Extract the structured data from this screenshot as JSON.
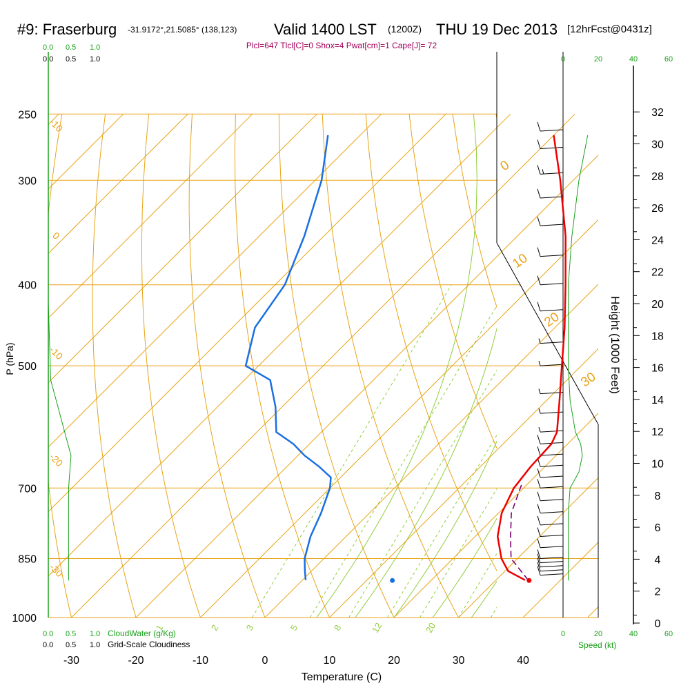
{
  "header": {
    "station": "#9: Fraserburg",
    "coords": "-31.9172°,21.5085° (138,123)",
    "valid": "Valid 1400 LST",
    "zulu": "(1200Z)",
    "date": "THU 19 Dec 2013",
    "forecast": "[12hrFcst@0431z]"
  },
  "indices": "Plcl=647 Tlcl[C]=0 Shox=4 Pwat[cm]=1 Cape[J]= 72",
  "colors": {
    "isotherm": "#e8a317",
    "temperature": "#ee0000",
    "dewpoint": "#1a6fe0",
    "parcel": "#7a0070",
    "mixing_ratio": "#8fce3a",
    "green_label": "#1aa01a",
    "index_text": "#a0005a"
  },
  "top_scale_cloudwater_labels": [
    "0.0",
    "0.5",
    "1.0"
  ],
  "top_scale_cloudiness_labels": [
    "0.0",
    "0.5",
    "1.0"
  ],
  "bottom_scale_cloudwater_labels": [
    "0.0",
    "0.5",
    "1.0"
  ],
  "bottom_scale_cloudwater_title": "CloudWater (g/Kg)",
  "bottom_scale_cloudiness_labels": [
    "0.0",
    "0.5",
    "1.0"
  ],
  "bottom_scale_cloudiness_title": "Grid-Scale Cloudiness",
  "speed_axis": {
    "labels": [
      "0",
      "20",
      "40",
      "60"
    ],
    "title": "Speed (kt)"
  },
  "height_axis": {
    "title": "Height (1000 Feet)",
    "ticks": [
      0,
      2,
      4,
      6,
      8,
      10,
      12,
      14,
      16,
      18,
      20,
      22,
      24,
      26,
      28,
      30,
      32
    ]
  },
  "chart_data": {
    "type": "line",
    "title": "Skew-T log-P sounding",
    "xlabel": "Temperature (C)",
    "ylabel": "P (hPa)",
    "x_ticks": [
      -30,
      -20,
      -10,
      0,
      10,
      20,
      30,
      40
    ],
    "y_ticks": [
      250,
      300,
      400,
      500,
      700,
      850,
      1000
    ],
    "pressure_range_hpa": [
      1000,
      250
    ],
    "skew_isotherm_labels": [
      "-10",
      "0",
      "-10",
      "-20",
      "-30"
    ],
    "theta_labels": [
      "0",
      "10",
      "20",
      "30"
    ],
    "mixing_ratio_labels": [
      "1",
      "2",
      "3",
      "5",
      "8",
      "12",
      "20"
    ],
    "series": [
      {
        "name": "temperature",
        "points": [
          [
            902,
            34.5
          ],
          [
            880,
            30.5
          ],
          [
            850,
            27.5
          ],
          [
            800,
            23.5
          ],
          [
            750,
            20.5
          ],
          [
            700,
            18.5
          ],
          [
            660,
            17.8
          ],
          [
            620,
            17.5
          ],
          [
            600,
            16.5
          ],
          [
            550,
            12.0
          ],
          [
            500,
            7.0
          ],
          [
            450,
            1.5
          ],
          [
            400,
            -5.0
          ],
          [
            350,
            -12.5
          ],
          [
            300,
            -22.0
          ],
          [
            265,
            -30.0
          ]
        ]
      },
      {
        "name": "dewpoint",
        "points": [
          [
            902,
            0.5
          ],
          [
            880,
            -1.0
          ],
          [
            850,
            -3.0
          ],
          [
            800,
            -5.5
          ],
          [
            750,
            -7.5
          ],
          [
            700,
            -10.0
          ],
          [
            680,
            -11.5
          ],
          [
            660,
            -15.0
          ],
          [
            640,
            -19.0
          ],
          [
            620,
            -22.5
          ],
          [
            600,
            -27.0
          ],
          [
            560,
            -31.0
          ],
          [
            520,
            -36.0
          ],
          [
            500,
            -42.0
          ],
          [
            450,
            -46.5
          ],
          [
            400,
            -48.5
          ],
          [
            350,
            -53.0
          ],
          [
            300,
            -59.0
          ],
          [
            265,
            -65.0
          ]
        ]
      },
      {
        "name": "parcel",
        "points": [
          [
            902,
            35.0
          ],
          [
            850,
            29.0
          ],
          [
            800,
            25.5
          ],
          [
            750,
            22.0
          ],
          [
            700,
            19.5
          ],
          [
            690,
            19.0
          ]
        ]
      }
    ],
    "surface_markers": [
      {
        "name": "surface temperature",
        "pressure": 903,
        "value": 35.2
      },
      {
        "name": "surface dewpoint",
        "pressure": 903,
        "value": 14.0
      }
    ],
    "wind_speed_profile_kt": [
      [
        903,
        3
      ],
      [
        880,
        3
      ],
      [
        850,
        3
      ],
      [
        800,
        3
      ],
      [
        750,
        3
      ],
      [
        700,
        4
      ],
      [
        670,
        9
      ],
      [
        640,
        11
      ],
      [
        620,
        10
      ],
      [
        600,
        7
      ],
      [
        550,
        4
      ],
      [
        500,
        3
      ],
      [
        450,
        3
      ],
      [
        400,
        3
      ],
      [
        350,
        5
      ],
      [
        300,
        9
      ],
      [
        265,
        14
      ]
    ],
    "cloud_cover_profile": [
      [
        903,
        0.42
      ],
      [
        700,
        0.42
      ],
      [
        640,
        0.47
      ],
      [
        520,
        0.05
      ],
      [
        420,
        0.0
      ],
      [
        250,
        0.0
      ]
    ],
    "wind_barbs": [
      {
        "pressure": 890,
        "speed_kt": 10
      },
      {
        "pressure": 880,
        "speed_kt": 10
      },
      {
        "pressure": 870,
        "speed_kt": 10
      },
      {
        "pressure": 860,
        "speed_kt": 10
      },
      {
        "pressure": 850,
        "speed_kt": 10
      },
      {
        "pressure": 825,
        "speed_kt": 10
      },
      {
        "pressure": 800,
        "speed_kt": 10
      },
      {
        "pressure": 775,
        "speed_kt": 10
      },
      {
        "pressure": 750,
        "speed_kt": 10
      },
      {
        "pressure": 725,
        "speed_kt": 10
      },
      {
        "pressure": 700,
        "speed_kt": 10
      },
      {
        "pressure": 680,
        "speed_kt": 10
      },
      {
        "pressure": 660,
        "speed_kt": 10
      },
      {
        "pressure": 640,
        "speed_kt": 10
      },
      {
        "pressure": 620,
        "speed_kt": 10
      },
      {
        "pressure": 600,
        "speed_kt": 5
      },
      {
        "pressure": 570,
        "speed_kt": 5
      },
      {
        "pressure": 540,
        "speed_kt": 5
      },
      {
        "pressure": 500,
        "speed_kt": 5
      },
      {
        "pressure": 470,
        "speed_kt": 5
      },
      {
        "pressure": 430,
        "speed_kt": 10
      },
      {
        "pressure": 400,
        "speed_kt": 10
      },
      {
        "pressure": 370,
        "speed_kt": 10
      },
      {
        "pressure": 340,
        "speed_kt": 10
      },
      {
        "pressure": 315,
        "speed_kt": 10
      },
      {
        "pressure": 295,
        "speed_kt": 15
      },
      {
        "pressure": 275,
        "speed_kt": 10
      },
      {
        "pressure": 262,
        "speed_kt": 10
      }
    ]
  }
}
